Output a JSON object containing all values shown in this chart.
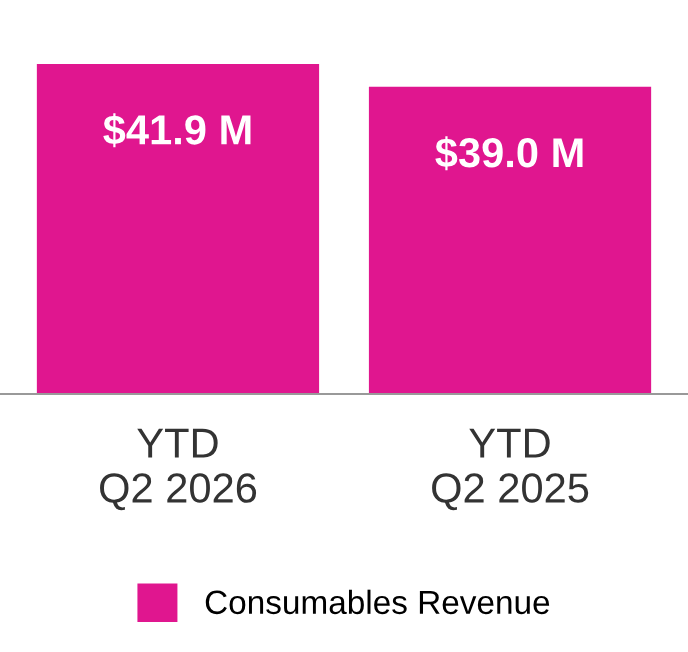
{
  "chart_data": {
    "type": "bar",
    "categories": [
      "YTD\nQ2 2026",
      "YTD\nQ2 2025"
    ],
    "series": [
      {
        "name": "Consumables Revenue",
        "color": "#e0168f",
        "values": [
          41.9,
          39.0
        ],
        "value_labels": [
          "$41.9 M",
          "$39.0 M"
        ]
      }
    ],
    "legend": "bottom",
    "grid": false
  }
}
